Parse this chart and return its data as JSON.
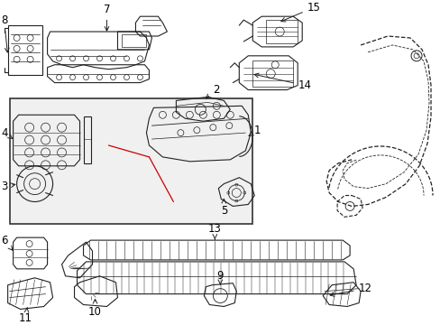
{
  "bg_color": "#ffffff",
  "box_bg": "#f0f0f0",
  "lc": "#222222",
  "rc": "#cc0000",
  "fs": 8.5,
  "fig_w": 4.89,
  "fig_h": 3.6,
  "dpi": 100
}
